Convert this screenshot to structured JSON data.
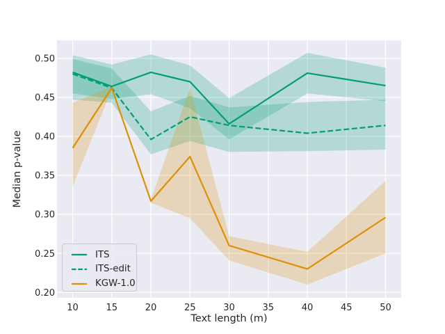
{
  "chart_data": {
    "type": "line",
    "title": "",
    "xlabel": "Text length (m)",
    "ylabel": "Median p-value",
    "x": [
      10,
      15,
      20,
      25,
      30,
      40,
      50
    ],
    "series": [
      {
        "name": "ITS",
        "color": "#029e73",
        "style": "solid",
        "values": [
          0.482,
          0.464,
          0.482,
          0.47,
          0.416,
          0.481,
          0.465
        ],
        "band_lo": [
          0.455,
          0.448,
          0.454,
          0.436,
          0.396,
          0.455,
          0.445
        ],
        "band_hi": [
          0.504,
          0.492,
          0.505,
          0.491,
          0.449,
          0.507,
          0.488
        ]
      },
      {
        "name": "ITS-edit",
        "color": "#029e73",
        "style": "dashed",
        "values": [
          0.48,
          0.462,
          0.396,
          0.425,
          0.414,
          0.404,
          0.414
        ],
        "band_lo": [
          0.447,
          0.443,
          0.377,
          0.394,
          0.38,
          0.381,
          0.383
        ],
        "band_hi": [
          0.499,
          0.487,
          0.432,
          0.452,
          0.437,
          0.444,
          0.447
        ]
      },
      {
        "name": "KGW-1.0",
        "color": "#de8f05",
        "style": "solid",
        "values": [
          0.385,
          0.462,
          0.317,
          0.374,
          0.26,
          0.23,
          0.296
        ],
        "band_lo": [
          0.336,
          0.46,
          0.315,
          0.295,
          0.241,
          0.21,
          0.25
        ],
        "band_hi": [
          0.443,
          0.464,
          0.319,
          0.462,
          0.272,
          0.252,
          0.343
        ]
      }
    ],
    "x_ticks": [
      "10",
      "15",
      "20",
      "25",
      "30",
      "35",
      "40",
      "45",
      "50"
    ],
    "y_ticks": [
      "0.20",
      "0.25",
      "0.30",
      "0.35",
      "0.40",
      "0.45",
      "0.50"
    ],
    "xlim": [
      8,
      52
    ],
    "ylim": [
      0.193,
      0.523
    ],
    "grid": true,
    "legend_position": "lower left",
    "plot_bg": "#eaeaf2",
    "grid_color": "#ffffff",
    "band_alpha": 0.23,
    "line_width": 2.2,
    "text_color": "#262626"
  }
}
